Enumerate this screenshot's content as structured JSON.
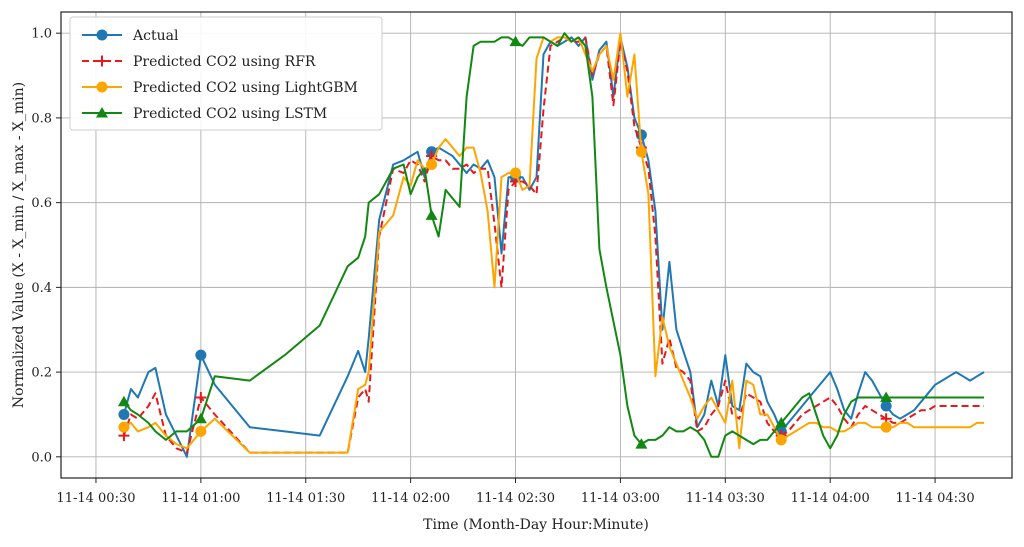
{
  "chart_data": {
    "type": "line",
    "xlabel": "Time (Month-Day Hour:Minute)",
    "ylabel": "Normalized Value (X - X_min / X_max - X_min)",
    "xlim": [
      "11-14 00:20",
      "11-14 04:52"
    ],
    "ylim": [
      -0.05,
      1.05
    ],
    "x_ticks": [
      "11-14 00:30",
      "11-14 01:00",
      "11-14 01:30",
      "11-14 02:00",
      "11-14 02:30",
      "11-14 03:00",
      "11-14 03:30",
      "11-14 04:00",
      "11-14 04:30"
    ],
    "y_ticks": [
      "0.0",
      "0.2",
      "0.4",
      "0.6",
      "0.8",
      "1.0"
    ],
    "grid": true,
    "legend_position": "top-left",
    "x": [
      "00:38",
      "00:40",
      "00:42",
      "00:45",
      "00:47",
      "00:50",
      "00:53",
      "00:56",
      "01:00",
      "01:04",
      "01:14",
      "01:24",
      "01:34",
      "01:42",
      "01:45",
      "01:47",
      "01:48",
      "01:51",
      "01:55",
      "01:58",
      "02:00",
      "02:02",
      "02:04",
      "02:06",
      "02:08",
      "02:10",
      "02:12",
      "02:14",
      "02:16",
      "02:18",
      "02:20",
      "02:22",
      "02:24",
      "02:26",
      "02:28",
      "02:30",
      "02:32",
      "02:34",
      "02:36",
      "02:38",
      "02:40",
      "02:42",
      "02:44",
      "02:46",
      "02:48",
      "02:50",
      "02:52",
      "02:54",
      "02:56",
      "02:58",
      "03:00",
      "03:02",
      "03:04",
      "03:06",
      "03:08",
      "03:10",
      "03:12",
      "03:14",
      "03:16",
      "03:18",
      "03:20",
      "03:22",
      "03:24",
      "03:26",
      "03:28",
      "03:30",
      "03:32",
      "03:34",
      "03:36",
      "03:38",
      "03:40",
      "03:42",
      "03:44",
      "03:46",
      "03:48",
      "03:50",
      "03:52",
      "03:54",
      "03:56",
      "03:58",
      "04:00",
      "04:02",
      "04:04",
      "04:06",
      "04:08",
      "04:10",
      "04:12",
      "04:14",
      "04:16",
      "04:18",
      "04:20",
      "04:22",
      "04:24",
      "04:26",
      "04:28",
      "04:30",
      "04:32",
      "04:34",
      "04:36",
      "04:38",
      "04:40",
      "04:42",
      "04:44"
    ],
    "series": [
      {
        "name": "Actual",
        "color": "#1f77b4",
        "style": "solid",
        "marker": "circle",
        "marker_at": [
          0,
          8,
          23,
          35,
          53,
          73,
          88
        ],
        "values": [
          0.1,
          0.16,
          0.14,
          0.2,
          0.21,
          0.1,
          0.05,
          0.0,
          0.24,
          0.17,
          0.07,
          0.06,
          0.05,
          0.19,
          0.25,
          0.2,
          0.28,
          0.56,
          0.69,
          0.7,
          0.71,
          0.72,
          0.66,
          0.72,
          0.73,
          0.72,
          0.71,
          0.69,
          0.67,
          0.69,
          0.68,
          0.7,
          0.66,
          0.48,
          0.66,
          0.66,
          0.66,
          0.63,
          0.66,
          0.95,
          0.98,
          0.97,
          0.98,
          0.99,
          0.97,
          0.99,
          0.89,
          0.96,
          0.98,
          0.85,
          0.99,
          0.92,
          0.8,
          0.76,
          0.7,
          0.58,
          0.3,
          0.46,
          0.3,
          0.25,
          0.2,
          0.07,
          0.1,
          0.18,
          0.12,
          0.24,
          0.12,
          0.11,
          0.22,
          0.2,
          0.19,
          0.13,
          0.1,
          0.06,
          0.08,
          0.1,
          0.12,
          0.14,
          0.16,
          0.18,
          0.2,
          0.16,
          0.11,
          0.09,
          0.15,
          0.2,
          0.18,
          0.15,
          0.12,
          0.1,
          0.09,
          0.1,
          0.11,
          0.13,
          0.15,
          0.17,
          0.18,
          0.19,
          0.2,
          0.19,
          0.18,
          0.19,
          0.2
        ]
      },
      {
        "name": "Predicted CO2 using RFR",
        "color": "#e6191c",
        "style": "dashed",
        "marker": "plus",
        "marker_at": [
          0,
          8,
          23,
          35,
          53,
          73,
          88
        ],
        "values": [
          0.05,
          0.1,
          0.09,
          0.12,
          0.15,
          0.05,
          0.02,
          0.01,
          0.14,
          0.1,
          0.01,
          0.01,
          0.01,
          0.01,
          0.14,
          0.16,
          0.13,
          0.52,
          0.68,
          0.67,
          0.7,
          0.69,
          0.65,
          0.71,
          0.7,
          0.7,
          0.68,
          0.68,
          0.69,
          0.67,
          0.68,
          0.68,
          0.55,
          0.4,
          0.63,
          0.65,
          0.65,
          0.64,
          0.62,
          0.82,
          0.97,
          0.98,
          0.99,
          0.98,
          0.98,
          0.99,
          0.9,
          0.95,
          0.97,
          0.83,
          0.98,
          0.91,
          0.78,
          0.73,
          0.68,
          0.52,
          0.22,
          0.28,
          0.21,
          0.2,
          0.18,
          0.06,
          0.07,
          0.1,
          0.12,
          0.18,
          0.1,
          0.09,
          0.15,
          0.14,
          0.13,
          0.08,
          0.06,
          0.05,
          0.06,
          0.08,
          0.1,
          0.11,
          0.12,
          0.13,
          0.14,
          0.12,
          0.09,
          0.07,
          0.1,
          0.12,
          0.11,
          0.1,
          0.09,
          0.08,
          0.08,
          0.09,
          0.1,
          0.11,
          0.11,
          0.12,
          0.12,
          0.12,
          0.12,
          0.12,
          0.12,
          0.12,
          0.12
        ]
      },
      {
        "name": "Predicted CO2 using LightGBM",
        "color": "#ffa500",
        "style": "solid",
        "marker": "circle",
        "marker_at": [
          0,
          8,
          23,
          35,
          53,
          73,
          88
        ],
        "values": [
          0.07,
          0.08,
          0.06,
          0.07,
          0.08,
          0.05,
          0.03,
          0.02,
          0.06,
          0.09,
          0.01,
          0.01,
          0.01,
          0.01,
          0.16,
          0.17,
          0.2,
          0.53,
          0.57,
          0.66,
          0.64,
          0.7,
          0.68,
          0.69,
          0.73,
          0.75,
          0.73,
          0.71,
          0.73,
          0.73,
          0.67,
          0.58,
          0.4,
          0.66,
          0.67,
          0.67,
          0.63,
          0.64,
          0.94,
          0.99,
          0.98,
          0.99,
          0.99,
          0.98,
          0.99,
          0.95,
          0.91,
          0.95,
          0.97,
          0.89,
          1.0,
          0.85,
          0.95,
          0.72,
          0.62,
          0.19,
          0.33,
          0.26,
          0.22,
          0.18,
          0.14,
          0.09,
          0.12,
          0.14,
          0.11,
          0.08,
          0.18,
          0.02,
          0.18,
          0.17,
          0.1,
          0.1,
          0.07,
          0.04,
          0.05,
          0.06,
          0.07,
          0.08,
          0.08,
          0.07,
          0.07,
          0.06,
          0.06,
          0.07,
          0.08,
          0.08,
          0.07,
          0.07,
          0.07,
          0.07,
          0.08,
          0.08,
          0.07,
          0.07,
          0.07,
          0.07,
          0.07,
          0.07,
          0.07,
          0.07,
          0.07,
          0.08,
          0.08
        ]
      },
      {
        "name": "Predicted CO2 using LSTM",
        "color": "#118811",
        "style": "solid",
        "marker": "triangle",
        "marker_at": [
          0,
          8,
          23,
          35,
          53,
          73,
          88
        ],
        "values": [
          0.13,
          0.11,
          0.1,
          0.08,
          0.06,
          0.04,
          0.06,
          0.06,
          0.09,
          0.19,
          0.18,
          0.24,
          0.31,
          0.45,
          0.47,
          0.52,
          0.6,
          0.62,
          0.68,
          0.69,
          0.62,
          0.66,
          0.68,
          0.57,
          0.52,
          0.63,
          0.61,
          0.59,
          0.85,
          0.97,
          0.98,
          0.98,
          0.98,
          0.99,
          0.99,
          0.98,
          0.97,
          0.99,
          0.99,
          0.99,
          0.98,
          0.97,
          1.0,
          0.98,
          0.99,
          0.97,
          0.85,
          0.49,
          0.4,
          0.32,
          0.24,
          0.12,
          0.05,
          0.03,
          0.04,
          0.04,
          0.05,
          0.07,
          0.06,
          0.06,
          0.07,
          0.06,
          0.04,
          0.0,
          0.0,
          0.05,
          0.06,
          0.05,
          0.04,
          0.03,
          0.04,
          0.04,
          0.06,
          0.08,
          0.1,
          0.12,
          0.14,
          0.15,
          0.1,
          0.05,
          0.02,
          0.05,
          0.1,
          0.13,
          0.14,
          0.14,
          0.14,
          0.14,
          0.14,
          0.14,
          0.14,
          0.14,
          0.14,
          0.14,
          0.14,
          0.14,
          0.14,
          0.14,
          0.14,
          0.14,
          0.14,
          0.14,
          0.14
        ]
      }
    ]
  }
}
